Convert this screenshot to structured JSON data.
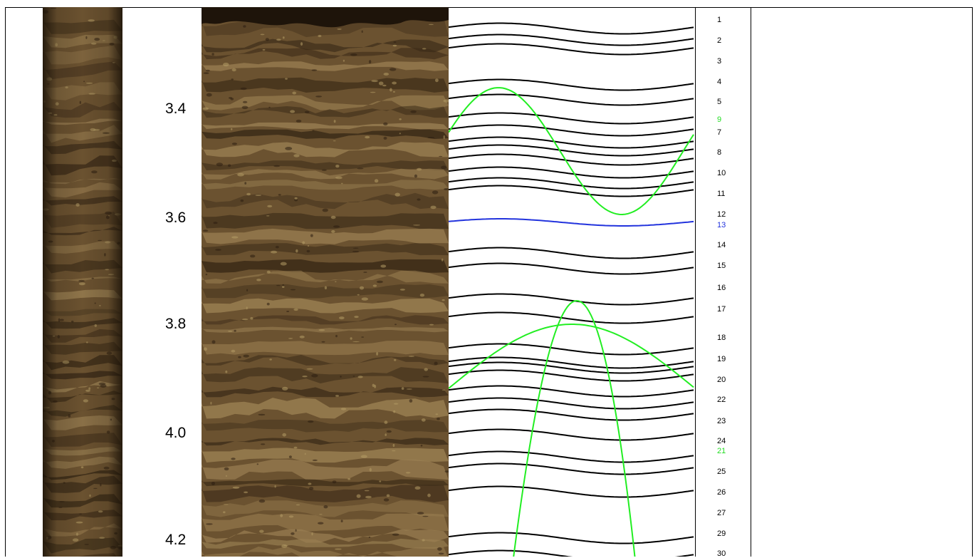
{
  "depth_axis": {
    "ticks": [
      "3.4",
      "3.6",
      "3.8",
      "4.0",
      "4.2"
    ]
  },
  "index_labels": [
    {
      "text": "1",
      "color": "black"
    },
    {
      "text": "2",
      "color": "black"
    },
    {
      "text": "3",
      "color": "black"
    },
    {
      "text": "4",
      "color": "black"
    },
    {
      "text": "5",
      "color": "black"
    },
    {
      "text": "9",
      "color": "green"
    },
    {
      "text": "7",
      "color": "black"
    },
    {
      "text": "8",
      "color": "black"
    },
    {
      "text": "10",
      "color": "black"
    },
    {
      "text": "11",
      "color": "black"
    },
    {
      "text": "12",
      "color": "black"
    },
    {
      "text": "13",
      "color": "blue"
    },
    {
      "text": "14",
      "color": "black"
    },
    {
      "text": "15",
      "color": "black"
    },
    {
      "text": "16",
      "color": "black"
    },
    {
      "text": "17",
      "color": "black"
    },
    {
      "text": "18",
      "color": "black"
    },
    {
      "text": "19",
      "color": "black"
    },
    {
      "text": "20",
      "color": "black"
    },
    {
      "text": "22",
      "color": "black"
    },
    {
      "text": "23",
      "color": "black"
    },
    {
      "text": "24",
      "color": "black"
    },
    {
      "text": "21",
      "color": "green"
    },
    {
      "text": "25",
      "color": "black"
    },
    {
      "text": "26",
      "color": "black"
    },
    {
      "text": "27",
      "color": "black"
    },
    {
      "text": "29",
      "color": "black"
    },
    {
      "text": "30",
      "color": "black"
    }
  ],
  "colors": {
    "trace_black": "#000000",
    "trace_green": "#22ee22",
    "trace_blue": "#2233dd",
    "core_base": "#6b5230",
    "core_dark": "#3a2a17",
    "core_light": "#9a7f52"
  }
}
